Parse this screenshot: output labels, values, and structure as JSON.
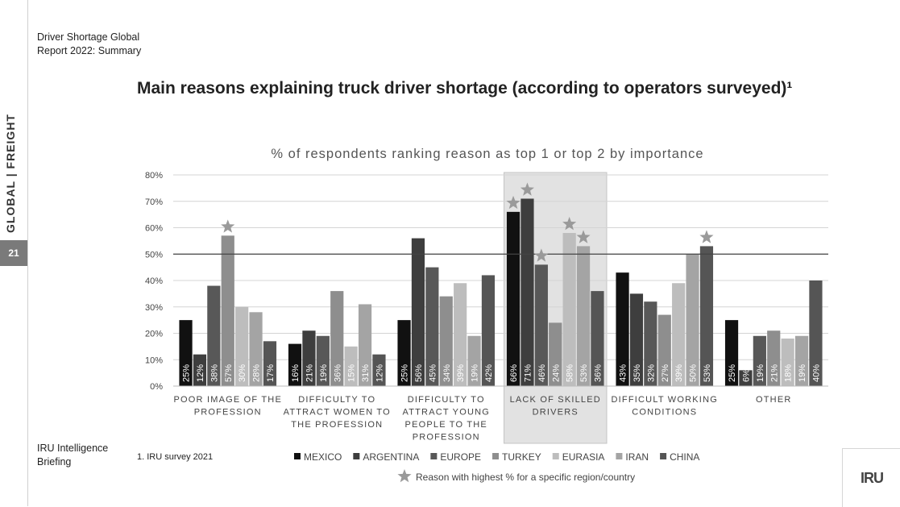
{
  "sidebar": {
    "label": "GLOBAL | FREIGHT",
    "page_number": "21"
  },
  "report_title": "Driver Shortage Global Report 2022: Summary",
  "main_title": "Main reasons explaining truck driver shortage (according to operators surveyed)¹",
  "footnote": "1. IRU survey 2021",
  "briefing": "IRU Intelligence Briefing",
  "logo": "IRU",
  "chart_data": {
    "type": "bar",
    "title": "% of respondents ranking reason as top 1 or top 2 by importance",
    "ylim": [
      0,
      80
    ],
    "yticks": [
      "0%",
      "10%",
      "20%",
      "30%",
      "40%",
      "50%",
      "60%",
      "70%",
      "80%"
    ],
    "categories": [
      [
        "POOR IMAGE OF THE",
        "PROFESSION"
      ],
      [
        "DIFFICULTY TO",
        "ATTRACT WOMEN TO",
        "THE PROFESSION"
      ],
      [
        "DIFFICULTY TO",
        "ATTRACT YOUNG",
        "PEOPLE TO THE",
        "PROFESSION"
      ],
      [
        "LACK OF SKILLED",
        "DRIVERS"
      ],
      [
        "DIFFICULT WORKING",
        "CONDITIONS"
      ],
      [
        "OTHER"
      ]
    ],
    "highlighted_category": 3,
    "series": [
      {
        "name": "MEXICO",
        "color": "#111111",
        "values": [
          25,
          16,
          25,
          66,
          43,
          25
        ]
      },
      {
        "name": "ARGENTINA",
        "color": "#3e3e3e",
        "values": [
          12,
          21,
          56,
          71,
          35,
          6
        ]
      },
      {
        "name": "EUROPE",
        "color": "#585858",
        "values": [
          38,
          19,
          45,
          46,
          32,
          19
        ]
      },
      {
        "name": "TURKEY",
        "color": "#8e8e8e",
        "values": [
          57,
          36,
          34,
          24,
          27,
          21
        ]
      },
      {
        "name": "EURASIA",
        "color": "#bdbdbd",
        "values": [
          30,
          15,
          39,
          58,
          39,
          18
        ]
      },
      {
        "name": "IRAN",
        "color": "#a4a4a4",
        "values": [
          28,
          31,
          19,
          53,
          50,
          19
        ]
      },
      {
        "name": "CHINA",
        "color": "#555555",
        "values": [
          17,
          12,
          42,
          36,
          53,
          40
        ]
      }
    ],
    "value_labels": [
      [
        "25%",
        "16%",
        "25%",
        "66%",
        "43%",
        "25%"
      ],
      [
        "12%",
        "21%",
        "56%",
        "71%",
        "35%",
        "6%"
      ],
      [
        "38%",
        "19%",
        "45%",
        "46%",
        "32%",
        "19%"
      ],
      [
        "57%",
        "36%",
        "34%",
        "24%",
        "27%",
        "21%"
      ],
      [
        "30%",
        "15%",
        "39%",
        "58%",
        "39%",
        "18%"
      ],
      [
        "28%",
        "31%",
        "19%",
        "53%",
        "50%",
        "19%"
      ],
      [
        "17%",
        "12%",
        "42%",
        "36%",
        "53%",
        "40%"
      ]
    ],
    "stars": [
      [
        3,
        0
      ],
      [
        0,
        3
      ],
      [
        1,
        3
      ],
      [
        2,
        3
      ],
      [
        4,
        3
      ],
      [
        5,
        3
      ],
      [
        6,
        4
      ]
    ],
    "star_legend": "Reason with highest % for a specific region/country",
    "grid": true,
    "reference_line": 50,
    "legend_position": "bottom"
  }
}
